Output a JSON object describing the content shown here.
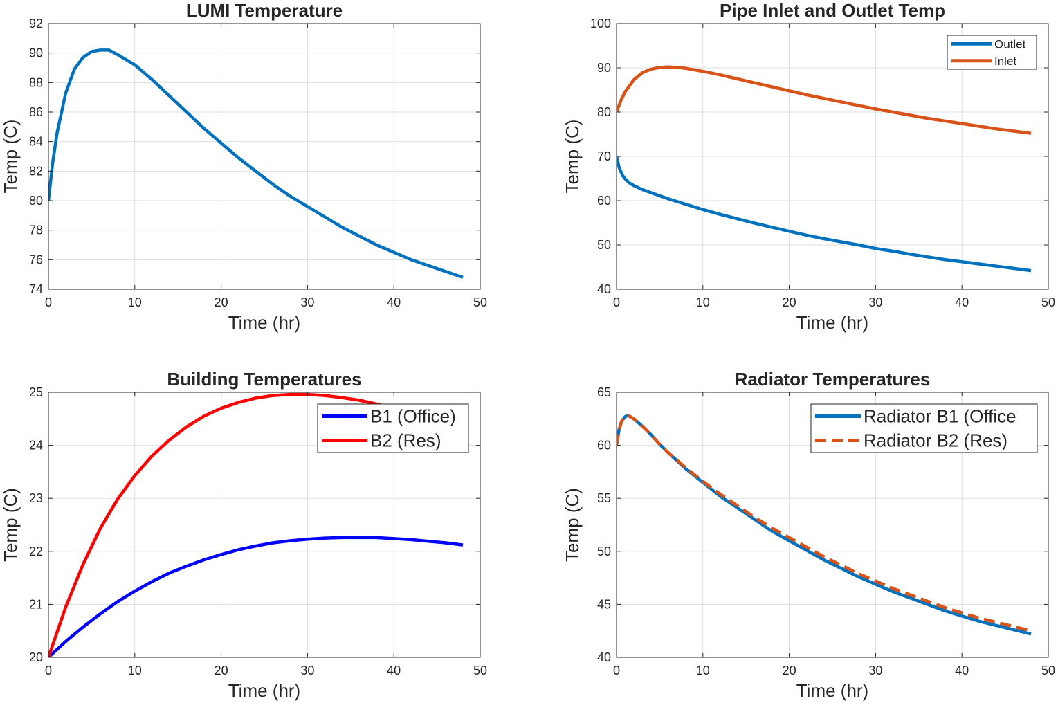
{
  "chart_data": [
    {
      "type": "line",
      "title": "LUMI Temperature",
      "xlabel": "Time (hr)",
      "ylabel": "Temp (C)",
      "xlim": [
        0,
        50
      ],
      "ylim": [
        74,
        92
      ],
      "xticks": [
        0,
        10,
        20,
        30,
        40,
        50
      ],
      "yticks": [
        74,
        76,
        78,
        80,
        82,
        84,
        86,
        88,
        90,
        92
      ],
      "grid": true,
      "legend": null,
      "series": [
        {
          "color": "#0072BD",
          "style": "solid",
          "x": [
            0,
            0.5,
            1,
            2,
            3,
            4,
            5,
            6,
            7,
            8,
            10,
            12,
            14,
            16,
            18,
            20,
            22,
            24,
            26,
            28,
            30,
            32,
            34,
            36,
            38,
            40,
            42,
            44,
            46,
            48
          ],
          "y": [
            80.0,
            82.6,
            84.6,
            87.3,
            88.9,
            89.7,
            90.1,
            90.2,
            90.2,
            89.9,
            89.2,
            88.2,
            87.1,
            86.0,
            84.9,
            83.9,
            82.9,
            82.0,
            81.1,
            80.3,
            79.6,
            78.9,
            78.2,
            77.6,
            77.0,
            76.5,
            76.0,
            75.6,
            75.2,
            74.8
          ]
        }
      ]
    },
    {
      "type": "line",
      "title": "Pipe Inlet and Outlet Temp",
      "xlabel": "Time (hr)",
      "ylabel": "Temp (C)",
      "xlim": [
        0,
        50
      ],
      "ylim": [
        40,
        100
      ],
      "xticks": [
        0,
        10,
        20,
        30,
        40,
        50
      ],
      "yticks": [
        40,
        50,
        60,
        70,
        80,
        90,
        100
      ],
      "grid": true,
      "legend": "top-right",
      "series": [
        {
          "name": "Outlet",
          "color": "#0072BD",
          "style": "solid",
          "x": [
            0,
            0.3,
            0.7,
            1,
            1.5,
            2,
            3,
            4,
            6,
            8,
            10,
            12,
            14,
            16,
            18,
            20,
            22,
            24,
            26,
            28,
            30,
            32,
            34,
            36,
            38,
            40,
            42,
            44,
            46,
            48
          ],
          "y": [
            70.0,
            67.5,
            65.7,
            64.9,
            64.0,
            63.4,
            62.5,
            61.8,
            60.4,
            59.2,
            58.0,
            56.9,
            55.9,
            54.9,
            54.0,
            53.1,
            52.2,
            51.4,
            50.7,
            50.0,
            49.2,
            48.6,
            47.9,
            47.3,
            46.7,
            46.2,
            45.7,
            45.2,
            44.7,
            44.2
          ]
        },
        {
          "name": "Inlet",
          "color": "#D95319",
          "style": "solid",
          "x": [
            0,
            0.5,
            1,
            2,
            3,
            4,
            5,
            6,
            7,
            8,
            10,
            12,
            14,
            16,
            18,
            20,
            22,
            24,
            26,
            28,
            30,
            32,
            34,
            36,
            38,
            40,
            42,
            44,
            46,
            48
          ],
          "y": [
            80.0,
            82.6,
            84.6,
            87.3,
            88.9,
            89.7,
            90.1,
            90.2,
            90.1,
            89.9,
            89.2,
            88.4,
            87.5,
            86.6,
            85.7,
            84.8,
            83.9,
            83.1,
            82.3,
            81.5,
            80.7,
            80.0,
            79.3,
            78.6,
            78.0,
            77.4,
            76.8,
            76.2,
            75.7,
            75.2
          ]
        }
      ]
    },
    {
      "type": "line",
      "title": "Building Temperatures",
      "xlabel": "Time (hr)",
      "ylabel": "Temp (C)",
      "xlim": [
        0,
        50
      ],
      "ylim": [
        20,
        25
      ],
      "xticks": [
        0,
        10,
        20,
        30,
        40,
        50
      ],
      "yticks": [
        20,
        21,
        22,
        23,
        24,
        25
      ],
      "grid": true,
      "legend": "top-right",
      "series": [
        {
          "name": "B1 (Office)",
          "color": "#0000FF",
          "style": "solid",
          "x": [
            0,
            2,
            4,
            6,
            8,
            10,
            12,
            14,
            16,
            18,
            20,
            22,
            24,
            26,
            28,
            30,
            32,
            34,
            36,
            38,
            40,
            42,
            44,
            46,
            48
          ],
          "y": [
            20.0,
            20.3,
            20.57,
            20.82,
            21.05,
            21.25,
            21.43,
            21.59,
            21.72,
            21.84,
            21.94,
            22.03,
            22.1,
            22.16,
            22.2,
            22.23,
            22.25,
            22.26,
            22.26,
            22.26,
            22.24,
            22.22,
            22.19,
            22.16,
            22.12
          ]
        },
        {
          "name": "B2 (Res)",
          "color": "#FF0000",
          "style": "solid",
          "x": [
            0,
            2,
            4,
            6,
            8,
            10,
            12,
            14,
            16,
            18,
            20,
            22,
            24,
            26,
            28,
            30,
            32,
            34,
            36,
            38,
            40,
            42,
            44,
            46,
            48
          ],
          "y": [
            20.0,
            20.95,
            21.75,
            22.43,
            22.98,
            23.43,
            23.8,
            24.1,
            24.35,
            24.55,
            24.7,
            24.81,
            24.89,
            24.94,
            24.96,
            24.96,
            24.94,
            24.9,
            24.85,
            24.78,
            24.7,
            24.61,
            24.52,
            24.42,
            24.31
          ]
        }
      ]
    },
    {
      "type": "line",
      "title": "Radiator Temperatures",
      "xlabel": "Time (hr)",
      "ylabel": "Temp (C)",
      "xlim": [
        0,
        50
      ],
      "ylim": [
        40,
        65
      ],
      "xticks": [
        0,
        10,
        20,
        30,
        40,
        50
      ],
      "yticks": [
        40,
        45,
        50,
        55,
        60,
        65
      ],
      "grid": true,
      "legend": "top-right",
      "series": [
        {
          "name": "Radiator B1 (Office",
          "color": "#0072BD",
          "style": "solid",
          "x": [
            0,
            0.3,
            0.6,
            1,
            1.3,
            1.6,
            2,
            3,
            4,
            5,
            6,
            8,
            10,
            12,
            14,
            16,
            18,
            20,
            22,
            24,
            26,
            28,
            30,
            32,
            34,
            36,
            38,
            40,
            42,
            44,
            46,
            48
          ],
          "y": [
            60.0,
            61.5,
            62.3,
            62.7,
            62.8,
            62.7,
            62.5,
            61.8,
            61.0,
            60.1,
            59.3,
            57.8,
            56.5,
            55.2,
            54.1,
            53.0,
            51.9,
            51.0,
            50.1,
            49.2,
            48.4,
            47.6,
            46.9,
            46.2,
            45.6,
            45.0,
            44.4,
            43.9,
            43.4,
            43.0,
            42.6,
            42.2
          ]
        },
        {
          "name": "Radiator B2 (Res)",
          "color": "#D95319",
          "style": "dashed",
          "x": [
            0,
            0.3,
            0.6,
            1,
            1.3,
            1.6,
            2,
            3,
            4,
            5,
            6,
            8,
            10,
            12,
            14,
            16,
            18,
            20,
            22,
            24,
            26,
            28,
            30,
            32,
            34,
            36,
            38,
            40,
            42,
            44,
            46,
            48
          ],
          "y": [
            60.0,
            61.5,
            62.3,
            62.7,
            62.8,
            62.7,
            62.5,
            61.8,
            61.0,
            60.1,
            59.3,
            57.9,
            56.6,
            55.4,
            54.3,
            53.2,
            52.2,
            51.3,
            50.4,
            49.5,
            48.7,
            47.9,
            47.2,
            46.5,
            45.9,
            45.3,
            44.7,
            44.2,
            43.7,
            43.3,
            42.9,
            42.5
          ]
        }
      ]
    }
  ]
}
